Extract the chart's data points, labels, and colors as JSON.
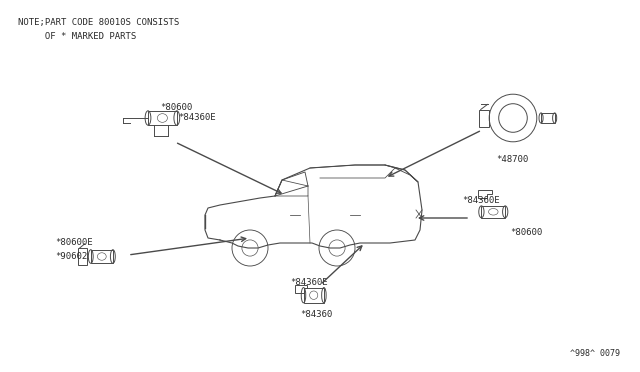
{
  "bg_color": "#ffffff",
  "line_color": "#4a4a4a",
  "text_color": "#2a2a2a",
  "note_line1": "NOTE;PART CODE 80010S CONSISTS",
  "note_line2": "     OF * MARKED PARTS",
  "catalog_number": "^998^ 0079",
  "fig_width": 6.4,
  "fig_height": 3.72,
  "dpi": 100
}
